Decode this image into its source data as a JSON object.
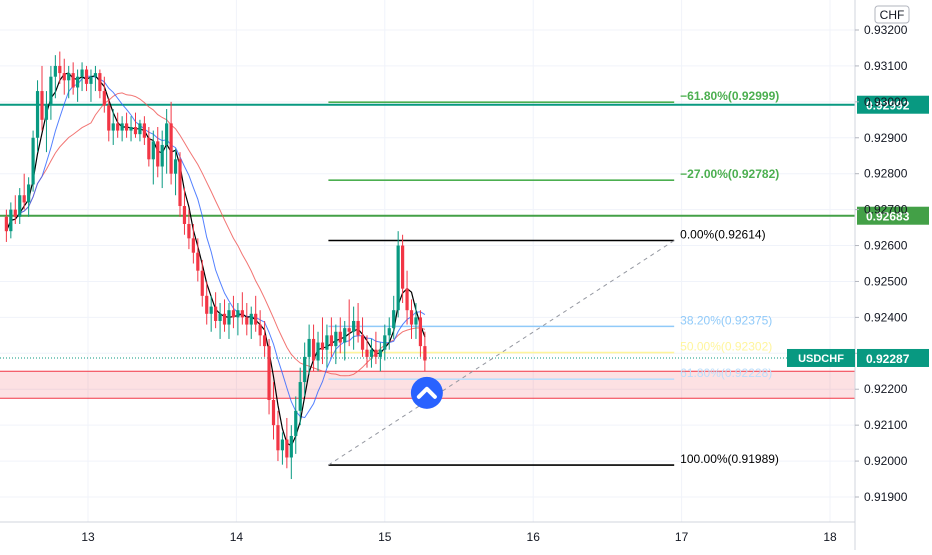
{
  "chart_data": {
    "type": "candlestick",
    "symbol": "USDCHF",
    "currency": "CHF",
    "last_price": "0.92287",
    "ylim": [
      0.9183,
      0.9326
    ],
    "xlim": [
      12.45,
      18.2
    ],
    "y_ticks": [
      "0.93200",
      "0.93100",
      "0.93000",
      "0.92900",
      "0.92800",
      "0.92700",
      "0.92600",
      "0.92500",
      "0.92400",
      "0.92300",
      "0.92200",
      "0.92100",
      "0.92000",
      "0.91900"
    ],
    "x_ticks": [
      {
        "label": "13",
        "x": 13
      },
      {
        "label": "14",
        "x": 14
      },
      {
        "label": "15",
        "x": 15
      },
      {
        "label": "16",
        "x": 16
      },
      {
        "label": "17",
        "x": 17
      },
      {
        "label": "18",
        "x": 18
      }
    ],
    "horizontal_levels": [
      {
        "price": 0.92992,
        "label": "0.92992",
        "color": "#089981"
      },
      {
        "price": 0.92683,
        "label": "0.92683",
        "color": "#43a047"
      }
    ],
    "support_zone": {
      "top": 0.9225,
      "bottom": 0.92175,
      "color": "#f23645"
    },
    "fibonacci": {
      "x_start": 14.62,
      "x_end": 16.95,
      "levels": [
        {
          "label": "−61.80%(0.92999)",
          "price": 0.92999,
          "color": "#4caf50"
        },
        {
          "label": "−27.00%(0.92782)",
          "price": 0.92782,
          "color": "#4caf50"
        },
        {
          "label": "0.00%(0.92614)",
          "price": 0.92614,
          "color": "#000000"
        },
        {
          "label": "38.20%(0.92375)",
          "price": 0.92375,
          "color": "#90caf9"
        },
        {
          "label": "50.00%(0.92302)",
          "price": 0.92302,
          "color": "#fff59d"
        },
        {
          "label": "61.80%(0.92228)",
          "price": 0.92228,
          "color": "#bbdefb"
        },
        {
          "label": "100.00%(0.91989)",
          "price": 0.91989,
          "color": "#000000"
        }
      ]
    },
    "candles": [
      [
        12.45,
        0.9268,
        0.927,
        0.9261,
        0.9264
      ],
      [
        12.48,
        0.9264,
        0.9272,
        0.9262,
        0.927
      ],
      [
        12.51,
        0.927,
        0.9274,
        0.9266,
        0.9268
      ],
      [
        12.54,
        0.9268,
        0.9276,
        0.9266,
        0.9274
      ],
      [
        12.57,
        0.9274,
        0.928,
        0.927,
        0.9272
      ],
      [
        12.6,
        0.9272,
        0.9279,
        0.9268,
        0.9277
      ],
      [
        12.63,
        0.9277,
        0.9292,
        0.9275,
        0.929
      ],
      [
        12.66,
        0.929,
        0.9306,
        0.9286,
        0.9303
      ],
      [
        12.69,
        0.9303,
        0.931,
        0.9292,
        0.9295
      ],
      [
        12.72,
        0.9295,
        0.9303,
        0.9286,
        0.9299
      ],
      [
        12.75,
        0.9299,
        0.931,
        0.9295,
        0.9307
      ],
      [
        12.78,
        0.9307,
        0.9313,
        0.9301,
        0.931
      ],
      [
        12.81,
        0.931,
        0.9314,
        0.9305,
        0.9308
      ],
      [
        12.84,
        0.9308,
        0.9312,
        0.9302,
        0.9306
      ],
      [
        12.87,
        0.9306,
        0.931,
        0.9301,
        0.9308
      ],
      [
        12.9,
        0.9308,
        0.9311,
        0.9302,
        0.9304
      ],
      [
        12.93,
        0.9304,
        0.9309,
        0.93,
        0.9307
      ],
      [
        12.96,
        0.9307,
        0.9311,
        0.9303,
        0.9309
      ],
      [
        12.99,
        0.9309,
        0.931,
        0.9303,
        0.9305
      ],
      [
        13.02,
        0.9305,
        0.9309,
        0.93,
        0.9307
      ],
      [
        13.05,
        0.9307,
        0.931,
        0.9303,
        0.9308
      ],
      [
        13.08,
        0.9308,
        0.9309,
        0.9301,
        0.9303
      ],
      [
        13.11,
        0.9303,
        0.9307,
        0.9297,
        0.9299
      ],
      [
        13.14,
        0.9299,
        0.9301,
        0.9289,
        0.9292
      ],
      [
        13.17,
        0.9292,
        0.9298,
        0.9288,
        0.9294
      ],
      [
        13.2,
        0.9294,
        0.9297,
        0.929,
        0.9292
      ],
      [
        13.23,
        0.9292,
        0.9296,
        0.9289,
        0.9294
      ],
      [
        13.26,
        0.9294,
        0.9297,
        0.929,
        0.9292
      ],
      [
        13.29,
        0.9292,
        0.9296,
        0.9289,
        0.9293
      ],
      [
        13.32,
        0.9293,
        0.9297,
        0.929,
        0.9291
      ],
      [
        13.35,
        0.9291,
        0.9295,
        0.9289,
        0.9294
      ],
      [
        13.38,
        0.9294,
        0.9296,
        0.9288,
        0.929
      ],
      [
        13.41,
        0.929,
        0.9293,
        0.9282,
        0.9284
      ],
      [
        13.44,
        0.9284,
        0.9292,
        0.9277,
        0.9289
      ],
      [
        13.47,
        0.9289,
        0.9293,
        0.9279,
        0.9282
      ],
      [
        13.5,
        0.9282,
        0.9292,
        0.9276,
        0.9288
      ],
      [
        13.53,
        0.9288,
        0.9298,
        0.928,
        0.9294
      ],
      [
        13.56,
        0.9294,
        0.93,
        0.9277,
        0.928
      ],
      [
        13.59,
        0.928,
        0.9287,
        0.9274,
        0.9284
      ],
      [
        13.62,
        0.9284,
        0.9286,
        0.9268,
        0.9271
      ],
      [
        13.65,
        0.9271,
        0.9276,
        0.9263,
        0.9266
      ],
      [
        13.68,
        0.9266,
        0.927,
        0.9259,
        0.9262
      ],
      [
        13.71,
        0.9262,
        0.9266,
        0.9255,
        0.9258
      ],
      [
        13.74,
        0.9258,
        0.9262,
        0.925,
        0.9253
      ],
      [
        13.77,
        0.9253,
        0.9256,
        0.9243,
        0.9246
      ],
      [
        13.8,
        0.9246,
        0.925,
        0.9238,
        0.9241
      ],
      [
        13.83,
        0.9241,
        0.9246,
        0.9236,
        0.9243
      ],
      [
        13.86,
        0.9243,
        0.9247,
        0.9237,
        0.9239
      ],
      [
        13.89,
        0.9239,
        0.9244,
        0.9234,
        0.9241
      ],
      [
        13.92,
        0.9241,
        0.9245,
        0.9236,
        0.9238
      ],
      [
        13.95,
        0.9238,
        0.9244,
        0.9234,
        0.9242
      ],
      [
        13.98,
        0.9242,
        0.9246,
        0.9237,
        0.924
      ],
      [
        14.01,
        0.924,
        0.9244,
        0.9235,
        0.9242
      ],
      [
        14.04,
        0.9242,
        0.9247,
        0.9238,
        0.924
      ],
      [
        14.07,
        0.924,
        0.9244,
        0.9235,
        0.9238
      ],
      [
        14.1,
        0.9238,
        0.9243,
        0.9234,
        0.9241
      ],
      [
        14.13,
        0.9241,
        0.9246,
        0.9236,
        0.9238
      ],
      [
        14.16,
        0.9238,
        0.9242,
        0.9232,
        0.9235
      ],
      [
        14.19,
        0.9235,
        0.9239,
        0.9229,
        0.9232
      ],
      [
        14.22,
        0.9232,
        0.9234,
        0.9213,
        0.9217
      ],
      [
        14.25,
        0.9217,
        0.9222,
        0.9206,
        0.921
      ],
      [
        14.28,
        0.921,
        0.9214,
        0.92,
        0.9203
      ],
      [
        14.31,
        0.9203,
        0.9208,
        0.9199,
        0.9206
      ],
      [
        14.34,
        0.9206,
        0.9212,
        0.9198,
        0.9201
      ],
      [
        14.37,
        0.9201,
        0.921,
        0.9195,
        0.9207
      ],
      [
        14.4,
        0.9207,
        0.9218,
        0.9202,
        0.9214
      ],
      [
        14.43,
        0.9214,
        0.9226,
        0.921,
        0.9222
      ],
      [
        14.46,
        0.9222,
        0.9233,
        0.9218,
        0.9229
      ],
      [
        14.49,
        0.9229,
        0.9238,
        0.9224,
        0.9234
      ],
      [
        14.52,
        0.9234,
        0.9238,
        0.9225,
        0.9228
      ],
      [
        14.55,
        0.9228,
        0.9236,
        0.9225,
        0.9233
      ],
      [
        14.58,
        0.9233,
        0.924,
        0.9227,
        0.9231
      ],
      [
        14.61,
        0.9231,
        0.9238,
        0.9226,
        0.9235
      ],
      [
        14.64,
        0.9235,
        0.924,
        0.9229,
        0.9232
      ],
      [
        14.67,
        0.9232,
        0.9238,
        0.9227,
        0.9236
      ],
      [
        14.7,
        0.9236,
        0.924,
        0.923,
        0.9233
      ],
      [
        14.73,
        0.9233,
        0.9239,
        0.9228,
        0.9237
      ],
      [
        14.76,
        0.9237,
        0.9245,
        0.9232,
        0.9236
      ],
      [
        14.79,
        0.9236,
        0.9243,
        0.9231,
        0.9239
      ],
      [
        14.82,
        0.9239,
        0.9244,
        0.9233,
        0.9235
      ],
      [
        14.85,
        0.9235,
        0.924,
        0.9229,
        0.9231
      ],
      [
        14.88,
        0.9231,
        0.9235,
        0.9226,
        0.9229
      ],
      [
        14.91,
        0.9229,
        0.9234,
        0.9226,
        0.9231
      ],
      [
        14.94,
        0.9231,
        0.9236,
        0.9227,
        0.9229
      ],
      [
        14.97,
        0.9229,
        0.9233,
        0.9225,
        0.9231
      ],
      [
        15.0,
        0.9231,
        0.9238,
        0.9228,
        0.9235
      ],
      [
        15.03,
        0.9235,
        0.924,
        0.9231,
        0.9237
      ],
      [
        15.06,
        0.9237,
        0.9246,
        0.9234,
        0.9242
      ],
      [
        15.09,
        0.9242,
        0.9264,
        0.924,
        0.926
      ],
      [
        15.12,
        0.926,
        0.9263,
        0.9244,
        0.9248
      ],
      [
        15.15,
        0.9248,
        0.9253,
        0.9238,
        0.9242
      ],
      [
        15.18,
        0.9242,
        0.9245,
        0.9234,
        0.9238
      ],
      [
        15.21,
        0.9238,
        0.9244,
        0.9234,
        0.924
      ],
      [
        15.24,
        0.924,
        0.9242,
        0.9229,
        0.9232
      ],
      [
        15.27,
        0.9232,
        0.9236,
        0.9225,
        0.9228
      ]
    ]
  }
}
